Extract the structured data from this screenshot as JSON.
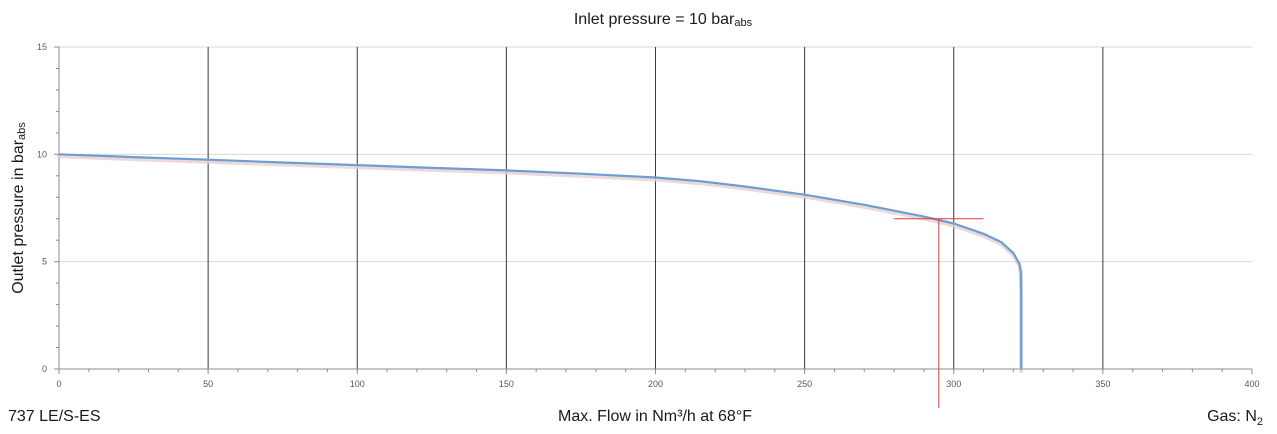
{
  "chart_data": {
    "type": "line",
    "title_prefix": "Inlet pressure = 10 bar",
    "title_sub": "abs",
    "ylabel_prefix": "Outlet pressure in bar",
    "ylabel_sub": "abs",
    "xlabel": "Max. Flow in Nm³/h at 68°F",
    "model_label": "737 LE/S-ES",
    "gas_label_prefix": "Gas: N",
    "gas_label_sub": "2",
    "xlim": [
      0,
      400
    ],
    "ylim": [
      0,
      15
    ],
    "x_ticks": [
      0,
      50,
      100,
      150,
      200,
      250,
      300,
      350,
      400
    ],
    "y_ticks": [
      0,
      5,
      10,
      15
    ],
    "grid": true,
    "series": [
      {
        "color": "#6b9fd4",
        "x": [
          0,
          25,
          50,
          75,
          100,
          125,
          150,
          175,
          200,
          215,
          230,
          250,
          270,
          290,
          300,
          310,
          316,
          320,
          322,
          322.5,
          322.6,
          322.6
        ],
        "y": [
          10.0,
          9.87,
          9.75,
          9.62,
          9.5,
          9.37,
          9.25,
          9.1,
          8.92,
          8.75,
          8.5,
          8.12,
          7.65,
          7.1,
          6.78,
          6.3,
          5.9,
          5.4,
          4.9,
          4.5,
          3.5,
          0.0
        ]
      }
    ],
    "operating_point": {
      "x": 295,
      "y": 7.0,
      "h_range": [
        280,
        310
      ],
      "color": "#e0383b"
    }
  }
}
